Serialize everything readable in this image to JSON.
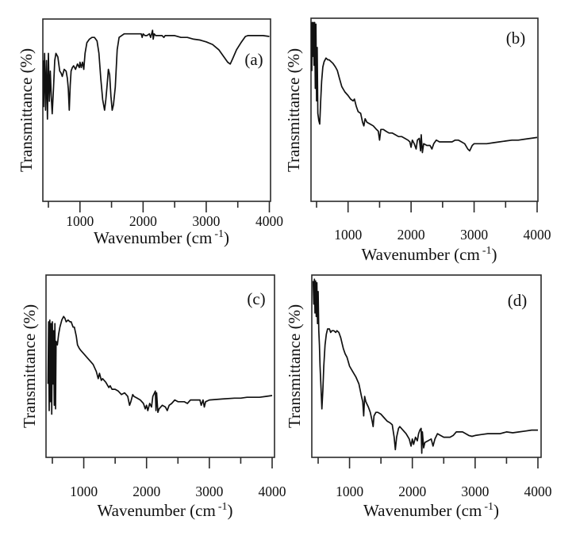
{
  "chart_data": [
    {
      "type": "line",
      "panel": "(a)",
      "title": "",
      "xlabel": "Wavenumber (cm",
      "xlabel_sup": "-1",
      "xlabel_close": ")",
      "ylabel": "Transmittance (%)",
      "xlim": [
        400,
        4025
      ],
      "ylim": [
        0,
        100
      ],
      "y_units_note": "relative (no y tick labels)",
      "x_ticks_major": [
        1000,
        2000,
        3000,
        4000
      ],
      "x_ticks_minor": [
        500,
        1500,
        2500,
        3500
      ],
      "x_tick_labels": [
        "1000",
        "2000",
        "3000",
        "4000"
      ],
      "grid": false,
      "legend": "none",
      "label_position": "top-right-below-curve",
      "series": [
        {
          "name": "spectrum-a",
          "x": [
            400,
            420,
            440,
            455,
            470,
            485,
            500,
            515,
            530,
            545,
            560,
            580,
            600,
            620,
            650,
            680,
            700,
            720,
            750,
            780,
            800,
            815,
            830,
            845,
            860,
            880,
            900,
            930,
            960,
            990,
            1000,
            1020,
            1040,
            1060,
            1080,
            1110,
            1150,
            1190,
            1230,
            1270,
            1300,
            1330,
            1360,
            1390,
            1410,
            1430,
            1450,
            1470,
            1490,
            1510,
            1530,
            1560,
            1590,
            1620,
            1660,
            1700,
            1800,
            1900,
            1970,
            1985,
            2000,
            2030,
            2060,
            2100,
            2120,
            2150,
            2160,
            2175,
            2200,
            2250,
            2300,
            2330,
            2350,
            2400,
            2500,
            2600,
            2700,
            2800,
            2900,
            3000,
            3100,
            3200,
            3280,
            3340,
            3380,
            3420,
            3480,
            3550,
            3620,
            3660,
            3700,
            3800,
            3900,
            4000
          ],
          "y": [
            78,
            52,
            82,
            50,
            78,
            45,
            82,
            55,
            72,
            58,
            48,
            62,
            78,
            82,
            80,
            72,
            71,
            69,
            73,
            72,
            68,
            62,
            50,
            64,
            72,
            74,
            75,
            73,
            76,
            74,
            77,
            74,
            77,
            73,
            82,
            88,
            90,
            91,
            91,
            89,
            82,
            68,
            56,
            50,
            56,
            64,
            73,
            70,
            58,
            50,
            53,
            63,
            84,
            91,
            92,
            93,
            93,
            93,
            93,
            91,
            93,
            92,
            92,
            93,
            91,
            95,
            90,
            93,
            92,
            92,
            92,
            91,
            92,
            92,
            92,
            91,
            91,
            90,
            89.5,
            88.5,
            87,
            84,
            80,
            77,
            76,
            79,
            84,
            88,
            91.5,
            92,
            92,
            92,
            92,
            91.5
          ]
        }
      ]
    },
    {
      "type": "line",
      "panel": "(b)",
      "title": "",
      "xlabel": "Wavenumber (cm",
      "xlabel_sup": "-1",
      "xlabel_close": ")",
      "ylabel": "Transmittance (%)",
      "xlim": [
        400,
        4010
      ],
      "ylim": [
        0,
        100
      ],
      "y_units_note": "relative (no y tick labels)",
      "x_ticks_major": [
        1000,
        2000,
        3000,
        4000
      ],
      "x_ticks_minor": [
        500,
        1500,
        2500,
        3500
      ],
      "x_tick_labels": [
        "1000",
        "2000",
        "3000",
        "4000"
      ],
      "grid": false,
      "legend": "none",
      "label_position": "top-right",
      "series": [
        {
          "name": "spectrum-b",
          "x": [
            410,
            420,
            430,
            440,
            450,
            460,
            470,
            480,
            490,
            500,
            510,
            520,
            535,
            550,
            565,
            580,
            600,
            620,
            650,
            680,
            700,
            730,
            760,
            800,
            830,
            860,
            900,
            950,
            1000,
            1040,
            1080,
            1100,
            1130,
            1160,
            1200,
            1230,
            1250,
            1270,
            1300,
            1350,
            1400,
            1450,
            1480,
            1500,
            1520,
            1560,
            1600,
            1650,
            1700,
            1750,
            1800,
            1850,
            1900,
            1950,
            1980,
            2000,
            2020,
            2050,
            2080,
            2100,
            2130,
            2150,
            2160,
            2180,
            2200,
            2250,
            2300,
            2330,
            2360,
            2400,
            2450,
            2500,
            2600,
            2650,
            2700,
            2750,
            2800,
            2850,
            2900,
            2930,
            2970,
            3000,
            3100,
            3200,
            3300,
            3400,
            3500,
            3600,
            3700,
            3800,
            3900,
            4000
          ],
          "y": [
            99,
            72,
            99,
            80,
            99,
            75,
            99,
            62,
            98,
            55,
            85,
            48,
            44,
            42,
            55,
            66,
            74,
            77,
            79,
            78,
            78,
            77,
            76,
            74,
            72,
            68,
            63,
            60,
            58,
            56,
            55,
            56,
            52,
            49,
            48,
            43,
            41,
            45,
            43,
            42,
            41,
            39,
            38,
            33,
            39,
            39,
            38,
            37,
            37,
            36,
            35,
            35,
            34,
            33,
            32,
            29,
            33,
            31,
            28,
            33,
            34,
            27,
            36,
            26,
            31,
            30,
            30,
            28,
            31,
            33,
            32,
            32,
            32,
            32,
            33,
            33,
            32,
            31,
            28,
            27,
            30,
            31,
            31,
            31,
            31.5,
            32,
            32.5,
            33,
            33,
            33.5,
            34,
            34.5
          ]
        }
      ]
    },
    {
      "type": "line",
      "panel": "(c)",
      "title": "",
      "xlabel": "Wavenumber (cm",
      "xlabel_sup": "-1",
      "xlabel_close": ")",
      "ylabel": "Transmittance (%)",
      "xlim": [
        400,
        4030
      ],
      "ylim": [
        0,
        100
      ],
      "y_units_note": "relative (no y tick labels)",
      "x_ticks_major": [
        1000,
        2000,
        3000,
        4000
      ],
      "x_ticks_minor": [
        500,
        1500,
        2500,
        3500
      ],
      "x_tick_labels": [
        "1000",
        "2000",
        "3000",
        "4000"
      ],
      "grid": false,
      "legend": "none",
      "label_position": "top-right",
      "series": [
        {
          "name": "spectrum-c",
          "x": [
            430,
            440,
            450,
            460,
            470,
            480,
            490,
            500,
            510,
            520,
            530,
            540,
            550,
            560,
            580,
            600,
            620,
            650,
            680,
            700,
            720,
            750,
            780,
            800,
            830,
            850,
            880,
            900,
            930,
            950,
            1000,
            1050,
            1100,
            1150,
            1200,
            1230,
            1250,
            1280,
            1300,
            1350,
            1400,
            1420,
            1450,
            1500,
            1550,
            1600,
            1650,
            1700,
            1730,
            1750,
            1780,
            1800,
            1850,
            1900,
            1950,
            1980,
            2000,
            2020,
            2050,
            2080,
            2100,
            2140,
            2150,
            2160,
            2180,
            2200,
            2250,
            2300,
            2330,
            2360,
            2400,
            2450,
            2500,
            2600,
            2650,
            2700,
            2800,
            2850,
            2870,
            2900,
            2920,
            2940,
            3000,
            3200,
            3400,
            3500,
            3600,
            3800,
            3900,
            4000
          ],
          "y": [
            40,
            75,
            25,
            76,
            30,
            74,
            23,
            75,
            40,
            70,
            28,
            74,
            26,
            64,
            62,
            68,
            72,
            76,
            78,
            77,
            75,
            76,
            75,
            75,
            72,
            72,
            67,
            62,
            60,
            59,
            57,
            55,
            53,
            51,
            47,
            43,
            46,
            42,
            43,
            41,
            38,
            39,
            37,
            37,
            36,
            34,
            35,
            33,
            28,
            30,
            34,
            33,
            32,
            31,
            29,
            26,
            28,
            25,
            29,
            27,
            33,
            36,
            25,
            35,
            24,
            26,
            28,
            27,
            25,
            28,
            29,
            31,
            30,
            30,
            29,
            31,
            31,
            31,
            28,
            31,
            27,
            30,
            31,
            31.5,
            32,
            32,
            32.5,
            32.5,
            33,
            33.5
          ]
        }
      ]
    },
    {
      "type": "line",
      "panel": "(d)",
      "title": "",
      "xlabel": "Wavenumber (cm",
      "xlabel_sup": "-1",
      "xlabel_close": ")",
      "ylabel": "Transmittance (%)",
      "xlim": [
        400,
        4040
      ],
      "ylim": [
        0,
        100
      ],
      "y_units_note": "relative (no y tick labels)",
      "x_ticks_major": [
        1000,
        2000,
        3000,
        4000
      ],
      "x_ticks_minor": [
        500,
        1500,
        2500,
        3500
      ],
      "x_tick_labels": [
        "1000",
        "2000",
        "3000",
        "4000"
      ],
      "grid": false,
      "legend": "none",
      "label_position": "top-right",
      "series": [
        {
          "name": "spectrum-d",
          "x": [
            420,
            430,
            440,
            450,
            460,
            470,
            480,
            490,
            500,
            510,
            520,
            530,
            545,
            560,
            575,
            590,
            610,
            630,
            650,
            680,
            700,
            720,
            750,
            780,
            800,
            830,
            860,
            880,
            900,
            930,
            960,
            1000,
            1050,
            1100,
            1150,
            1190,
            1210,
            1225,
            1240,
            1260,
            1300,
            1330,
            1360,
            1375,
            1390,
            1420,
            1450,
            1500,
            1550,
            1600,
            1650,
            1680,
            1710,
            1730,
            1750,
            1780,
            1800,
            1850,
            1900,
            1950,
            1980,
            2000,
            2020,
            2050,
            2080,
            2100,
            2120,
            2140,
            2150,
            2160,
            2180,
            2200,
            2250,
            2300,
            2330,
            2360,
            2400,
            2450,
            2500,
            2600,
            2650,
            2700,
            2800,
            2850,
            2900,
            2950,
            3000,
            3100,
            3200,
            3400,
            3500,
            3600,
            3700,
            3800,
            3900,
            4000
          ],
          "y": [
            98,
            85,
            99,
            80,
            98,
            78,
            97,
            74,
            92,
            70,
            62,
            50,
            38,
            26,
            36,
            50,
            62,
            68,
            71,
            71,
            69,
            70,
            70,
            69,
            70,
            69,
            66,
            63,
            60,
            57,
            55,
            50,
            47,
            44,
            40,
            33,
            30,
            22,
            33,
            30,
            27,
            24,
            19,
            16,
            22,
            24,
            24,
            23,
            21,
            19,
            18,
            17,
            10,
            3,
            10,
            15,
            16,
            14,
            12,
            9,
            5,
            9,
            6,
            10,
            8,
            12,
            14,
            15,
            1,
            13,
            4,
            7,
            8,
            9,
            5,
            9,
            12,
            11,
            10,
            10,
            11,
            13,
            13,
            12,
            11,
            10.5,
            11,
            11.5,
            12,
            12,
            13,
            12.5,
            13,
            13.5,
            14,
            14
          ]
        }
      ]
    }
  ]
}
